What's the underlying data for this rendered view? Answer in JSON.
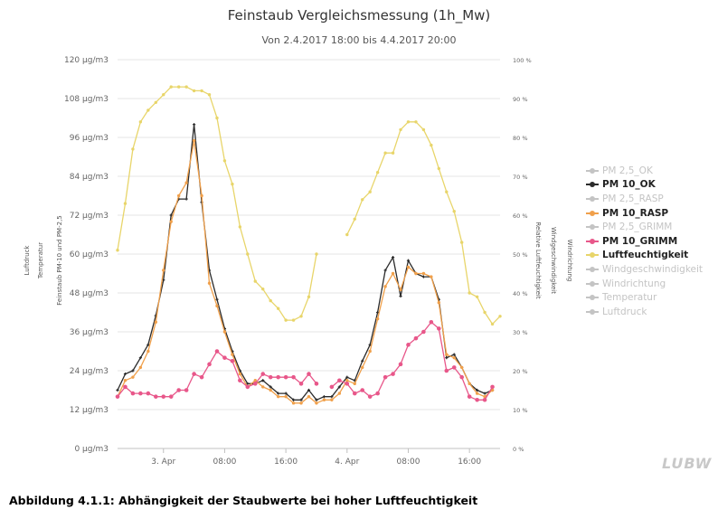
{
  "header": {
    "title": "Feinstaub Vergleichsmessung (1h_Mw)",
    "subtitle": "Von 2.4.2017 18:00 bis 4.4.2017 20:00"
  },
  "caption": "Abbildung 4.1.1: Abhängigkeit der Staubwerte bei hoher Luftfeuchtigkeit",
  "logo_text": "LUBW",
  "chart_data": {
    "type": "line",
    "axes": {
      "left_ticks": [
        "0 µg/m3",
        "12 µg/m3",
        "24 µg/m3",
        "36 µg/m3",
        "48 µg/m3",
        "60 µg/m3",
        "72 µg/m3",
        "84 µg/m3",
        "96 µg/m3",
        "108 µg/m3",
        "120 µg/m3"
      ],
      "right_ticks": [
        "0 %",
        "10 %",
        "20 %",
        "30 %",
        "40 %",
        "50 %",
        "60 %",
        "70 %",
        "80 %",
        "90 %",
        "100 %"
      ],
      "x_ticks": [
        {
          "label": "3. Apr",
          "hour": 6
        },
        {
          "label": "08:00",
          "hour": 14
        },
        {
          "label": "16:00",
          "hour": 22
        },
        {
          "label": "4. Apr",
          "hour": 30
        },
        {
          "label": "08:00",
          "hour": 38
        },
        {
          "label": "16:00",
          "hour": 46
        }
      ],
      "axis_titles": [
        "Luftdruck",
        "Temperatur",
        "Feinstaub PM-10 und PM-2,5",
        "Relative Luftfeuchtigkeit",
        "Windgeschwindigkeit",
        "Windrichtung"
      ],
      "ylim_left": [
        0,
        120
      ],
      "ylim_right": [
        0,
        100
      ],
      "xlim_hours": [
        0,
        50
      ]
    },
    "x_hours": [
      0,
      1,
      2,
      3,
      4,
      5,
      6,
      7,
      8,
      9,
      10,
      11,
      12,
      13,
      14,
      15,
      16,
      17,
      18,
      19,
      20,
      21,
      22,
      23,
      24,
      25,
      26,
      27,
      28,
      29,
      30,
      31,
      32,
      33,
      34,
      35,
      36,
      37,
      38,
      39,
      40,
      41,
      42,
      43,
      44,
      45,
      46,
      47,
      48,
      49,
      50
    ],
    "series": [
      {
        "name": "PM 10_OK",
        "axis": "left",
        "color": "#2b2b2b",
        "values": [
          18,
          23,
          24,
          28,
          32,
          41,
          52,
          72,
          77,
          77,
          100,
          76,
          55,
          46,
          37,
          30,
          24,
          20,
          20,
          21,
          19,
          17,
          17,
          15,
          15,
          18,
          15,
          16,
          16,
          19,
          22,
          21,
          27,
          32,
          42,
          55,
          59,
          47,
          58,
          54,
          53,
          53,
          46,
          28,
          29,
          25,
          20,
          18,
          17,
          18,
          null
        ]
      },
      {
        "name": "PM 10_RASP",
        "axis": "left",
        "color": "#f0a04b",
        "values": [
          16,
          21,
          22,
          25,
          30,
          39,
          55,
          70,
          78,
          82,
          95,
          78,
          51,
          44,
          36,
          29,
          23,
          19,
          21,
          19,
          18,
          16,
          16,
          14,
          14,
          16,
          14,
          15,
          15,
          17,
          21,
          20,
          25,
          30,
          40,
          50,
          54,
          49,
          56,
          54,
          54,
          53,
          45,
          29,
          28,
          25,
          20,
          17,
          16,
          18,
          null
        ]
      },
      {
        "name": "PM 10_GRIMM",
        "axis": "left",
        "color": "#e8578a",
        "values": [
          16,
          19,
          17,
          17,
          17,
          16,
          16,
          16,
          18,
          18,
          23,
          22,
          26,
          30,
          28,
          27,
          21,
          19,
          20,
          23,
          22,
          22,
          22,
          22,
          20,
          23,
          20,
          null,
          19,
          21,
          20,
          17,
          18,
          16,
          17,
          22,
          23,
          26,
          32,
          34,
          36,
          39,
          37,
          24,
          25,
          22,
          16,
          15,
          15,
          19,
          null
        ]
      },
      {
        "name": "Luftfeuchtigkeit",
        "axis": "right",
        "color": "#e8d56a",
        "values": [
          51,
          63,
          77,
          84,
          87,
          89,
          91,
          93,
          93,
          93,
          92,
          92,
          91,
          85,
          74,
          68,
          57,
          50,
          43,
          41,
          38,
          36,
          33,
          33,
          34,
          39,
          50,
          null,
          null,
          null,
          55,
          59,
          64,
          66,
          71,
          76,
          76,
          82,
          84,
          84,
          82,
          78,
          72,
          66,
          61,
          53,
          40,
          39,
          35,
          32,
          34
        ]
      }
    ],
    "legend": {
      "placement": "right",
      "items": [
        {
          "label": "PM 2,5_OK",
          "color": "#c4c4c4",
          "active": false
        },
        {
          "label": "PM 10_OK",
          "color": "#2b2b2b",
          "active": true
        },
        {
          "label": "PM 2,5_RASP",
          "color": "#c4c4c4",
          "active": false
        },
        {
          "label": "PM 10_RASP",
          "color": "#f0a04b",
          "active": true
        },
        {
          "label": "PM 2,5_GRIMM",
          "color": "#c4c4c4",
          "active": false
        },
        {
          "label": "PM 10_GRIMM",
          "color": "#e8578a",
          "active": true
        },
        {
          "label": "Luftfeuchtigkeit",
          "color": "#e8d56a",
          "active": true
        },
        {
          "label": "Windgeschwindigkeit",
          "color": "#c4c4c4",
          "active": false
        },
        {
          "label": "Windrichtung",
          "color": "#c4c4c4",
          "active": false
        },
        {
          "label": "Temperatur",
          "color": "#c4c4c4",
          "active": false
        },
        {
          "label": "Luftdruck",
          "color": "#c4c4c4",
          "active": false
        }
      ]
    },
    "grid": true
  }
}
